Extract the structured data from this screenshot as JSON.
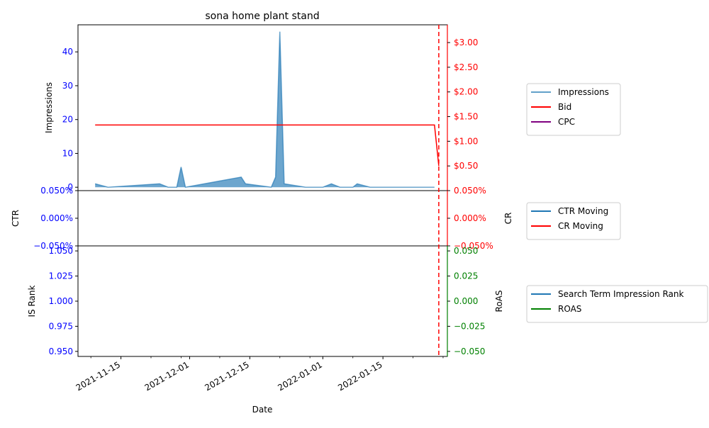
{
  "chart_data": {
    "type": "area",
    "title": "sona home plant stand",
    "xlabel": "Date",
    "x_ticks": [
      "2021-11-15",
      "2021-12-01",
      "2021-12-15",
      "2022-01-01",
      "2022-01-15"
    ],
    "x_range": [
      "2021-11-05",
      "2022-01-30"
    ],
    "panels": [
      {
        "name": "top",
        "left_axis": {
          "label": "Impressions",
          "ylim": [
            -1,
            48
          ],
          "ticks": [
            0,
            10,
            20,
            30,
            40
          ],
          "tick_labels": [
            "0",
            "10",
            "20",
            "30",
            "40"
          ],
          "color": "#0000ff"
        },
        "right_axis": {
          "ylim": [
            0.0,
            3.36
          ],
          "ticks": [
            0.5,
            1.0,
            1.5,
            2.0,
            2.5,
            3.0
          ],
          "tick_labels": [
            "$0.50",
            "$1.00",
            "$1.50",
            "$2.00",
            "$2.50",
            "$3.00"
          ],
          "color": "#ff0000"
        },
        "series": [
          {
            "name": "Impressions",
            "axis": "left",
            "style": "area",
            "color": "#1f77b4",
            "points": [
              [
                "2021-11-09",
                1
              ],
              [
                "2021-11-12",
                0
              ],
              [
                "2021-11-24",
                1
              ],
              [
                "2021-11-26",
                0
              ],
              [
                "2021-11-28",
                0
              ],
              [
                "2021-11-29",
                6
              ],
              [
                "2021-11-30",
                0
              ],
              [
                "2021-12-13",
                3
              ],
              [
                "2021-12-14",
                1
              ],
              [
                "2021-12-20",
                0
              ],
              [
                "2021-12-21",
                3
              ],
              [
                "2021-12-22",
                46
              ],
              [
                "2021-12-23",
                1
              ],
              [
                "2021-12-28",
                0
              ],
              [
                "2022-01-01",
                0
              ],
              [
                "2022-01-03",
                1
              ],
              [
                "2022-01-05",
                0
              ],
              [
                "2022-01-08",
                0
              ],
              [
                "2022-01-09",
                1
              ],
              [
                "2022-01-12",
                0
              ],
              [
                "2022-01-27",
                0
              ]
            ]
          },
          {
            "name": "Bid",
            "axis": "right",
            "style": "line",
            "color": "#ff0000",
            "points": [
              [
                "2021-11-09",
                1.33
              ],
              [
                "2022-01-27",
                1.33
              ],
              [
                "2022-01-28",
                0.5
              ]
            ]
          },
          {
            "name": "CPC",
            "axis": "right",
            "style": "line",
            "color": "#800080",
            "points": []
          }
        ]
      },
      {
        "name": "middle",
        "left_axis": {
          "label": "CTR",
          "ylim": [
            -0.05,
            0.05
          ],
          "ticks": [
            -0.05,
            0.0,
            0.05
          ],
          "tick_labels": [
            "−0.050%",
            "0.000%",
            "0.050%"
          ],
          "color": "#0000ff"
        },
        "right_axis": {
          "label": "CR",
          "ylim": [
            -0.05,
            0.05
          ],
          "ticks": [
            -0.05,
            0.0,
            0.05
          ],
          "tick_labels": [
            "−0.050%",
            "0.000%",
            "0.050%"
          ],
          "color": "#ff0000"
        },
        "series": [
          {
            "name": "CTR Moving",
            "axis": "left",
            "style": "line",
            "color": "#1f77b4",
            "points": []
          },
          {
            "name": "CR Moving",
            "axis": "right",
            "style": "line",
            "color": "#ff0000",
            "points": []
          }
        ]
      },
      {
        "name": "bottom",
        "left_axis": {
          "label": "IS Rank",
          "ylim": [
            0.945,
            1.055
          ],
          "ticks": [
            0.95,
            0.975,
            1.0,
            1.025,
            1.05
          ],
          "tick_labels": [
            "0.950",
            "0.975",
            "1.000",
            "1.025",
            "1.050"
          ],
          "color": "#0000ff"
        },
        "right_axis": {
          "label": "RoAS",
          "ylim": [
            -0.055,
            0.055
          ],
          "ticks": [
            -0.05,
            -0.025,
            0.0,
            0.025,
            0.05
          ],
          "tick_labels": [
            "−0.050",
            "−0.025",
            "0.000",
            "0.025",
            "0.050"
          ],
          "color": "#008000"
        },
        "series": [
          {
            "name": "Search Term Impression Rank",
            "axis": "left",
            "style": "line",
            "color": "#1f77b4",
            "points": []
          },
          {
            "name": "ROAS",
            "axis": "right",
            "style": "line",
            "color": "#008000",
            "points": []
          }
        ]
      }
    ],
    "vline": {
      "date": "2022-01-28",
      "color": "#ff0000",
      "style": "dashed"
    },
    "legends": [
      {
        "placement": "right-of-top",
        "entries": [
          {
            "label": "Impressions",
            "color": "#1f77b4"
          },
          {
            "label": "Bid",
            "color": "#ff0000"
          },
          {
            "label": "CPC",
            "color": "#800080"
          }
        ]
      },
      {
        "placement": "right-of-middle",
        "entries": [
          {
            "label": "CTR Moving",
            "color": "#1f77b4"
          },
          {
            "label": "CR Moving",
            "color": "#ff0000"
          }
        ]
      },
      {
        "placement": "right-of-bottom",
        "entries": [
          {
            "label": "Search Term Impression Rank",
            "color": "#1f77b4"
          },
          {
            "label": "ROAS",
            "color": "#008000"
          }
        ]
      }
    ]
  }
}
